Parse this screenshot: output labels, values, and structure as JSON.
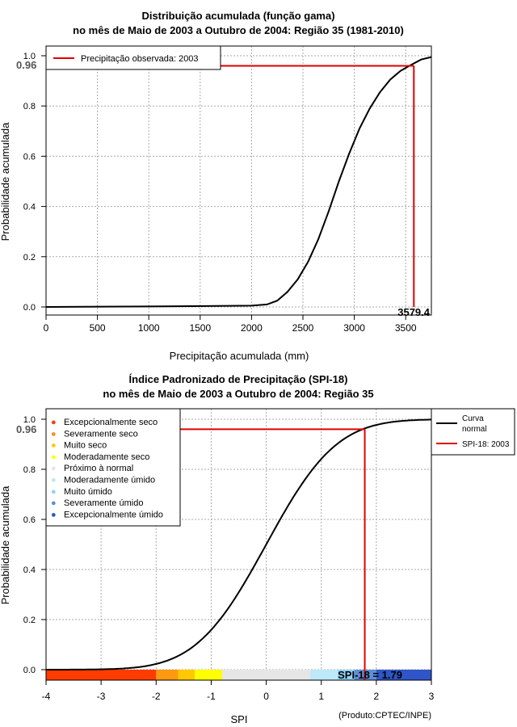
{
  "chart_data": [
    {
      "type": "line",
      "title_line1": "Distribuição acumulada (função gama)",
      "title_line2": "no mês de Maio de 2003 a Outubro de 2004: Região 35 (1981-2010)",
      "xlabel": "Precipitação acumulada (mm)",
      "ylabel": "Probabilidade acumulada",
      "xlim": [
        0,
        3750
      ],
      "ylim": [
        0,
        1
      ],
      "x_ticks": [
        "0",
        "500",
        "1000",
        "1500",
        "2000",
        "2500",
        "3000",
        "3500"
      ],
      "y_ticks": [
        "0.0",
        "0.2",
        "0.4",
        "0.6",
        "0.8",
        "1.0"
      ],
      "grid": true,
      "legend": [
        "Precipitação observada: 2003"
      ],
      "legend_position": "top-left",
      "marker_prob": 0.96,
      "marker_prob_label": "0.96",
      "marker_x": 3579.4,
      "marker_x_label": "3579.4",
      "curve": {
        "name": "Gamma CDF",
        "x": [
          0,
          1000,
          2000,
          2150,
          2250,
          2350,
          2450,
          2550,
          2650,
          2750,
          2850,
          2950,
          3050,
          3150,
          3250,
          3350,
          3450,
          3550,
          3650,
          3750
        ],
        "y": [
          0,
          0.002,
          0.005,
          0.01,
          0.025,
          0.06,
          0.11,
          0.18,
          0.27,
          0.38,
          0.5,
          0.61,
          0.71,
          0.79,
          0.855,
          0.905,
          0.94,
          0.963,
          0.985,
          0.995
        ]
      },
      "observed_color": "#e00000"
    },
    {
      "type": "line",
      "title_line1": "Índice Padronizado de Precipitação (SPI-18)",
      "title_line2": "no mês de Maio de 2003 a Outubro de 2004: Região 35",
      "xlabel": "SPI",
      "ylabel": "Probabilidade acumulada",
      "xlim": [
        -4,
        3
      ],
      "ylim": [
        0,
        1
      ],
      "x_ticks": [
        "-4",
        "-3",
        "-2",
        "-1",
        "0",
        "1",
        "2",
        "3"
      ],
      "y_ticks": [
        "0.0",
        "0.2",
        "0.4",
        "0.6",
        "0.8",
        "1.0"
      ],
      "grid": true,
      "marker_prob": 0.96,
      "marker_prob_label": "0.96",
      "spi_value": 1.79,
      "spi_label": "SPI-18 = 1.79",
      "legend": [
        "Curva normal",
        "SPI-18: 2003"
      ],
      "legend_position": "top-right",
      "categories_legend": [
        "Excepcionalmente seco",
        "Severamente seco",
        "Muito seco",
        "Moderadamente seco",
        "Próximo à normal",
        "Moderadamente úmido",
        "Muito úmido",
        "Severamente úmido",
        "Excepcionalmente úmido"
      ],
      "category_colors": [
        "#ff3c00",
        "#ff8c1a",
        "#ffc800",
        "#ffff00",
        "#e6e6e6",
        "#bde8f7",
        "#8fd3f5",
        "#5b8fd6",
        "#2f55c8"
      ],
      "color_bar": [
        {
          "from": -4,
          "to": -2,
          "color": "#ff3c00"
        },
        {
          "from": -2,
          "to": -1.6,
          "color": "#ff9a10"
        },
        {
          "from": -1.6,
          "to": -1.3,
          "color": "#ffc800"
        },
        {
          "from": -1.3,
          "to": -0.8,
          "color": "#ffff00"
        },
        {
          "from": -0.8,
          "to": 0.8,
          "color": "#e6e6e6"
        },
        {
          "from": 0.8,
          "to": 1.3,
          "color": "#bde8f7"
        },
        {
          "from": 1.3,
          "to": 1.6,
          "color": "#8fd3f5"
        },
        {
          "from": 1.6,
          "to": 2.0,
          "color": "#5b8fd6"
        },
        {
          "from": 2.0,
          "to": 3.0,
          "color": "#2f55c8"
        }
      ],
      "observed_color": "#e00000"
    }
  ],
  "footer": "(Produto:CPTEC/INPE)"
}
